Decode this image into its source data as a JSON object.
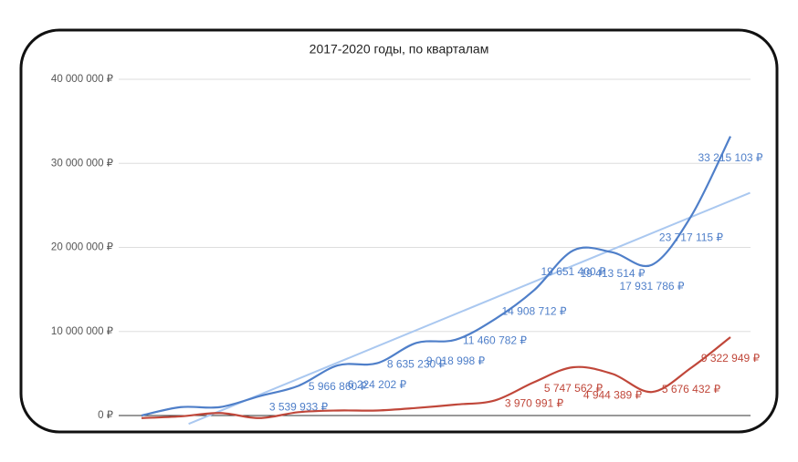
{
  "chart_data": {
    "type": "line",
    "title": "2017-2020 годы, по кварталам",
    "categories": [
      null,
      null,
      null,
      null,
      null,
      null,
      null,
      null,
      null,
      null,
      null,
      null,
      null,
      null,
      null,
      null
    ],
    "xlim": [
      0,
      15
    ],
    "ylim": [
      0,
      40000000
    ],
    "yticks": [
      {
        "value": 0,
        "label": "0 ₽"
      },
      {
        "value": 10000000,
        "label": "10 000 000 ₽"
      },
      {
        "value": 20000000,
        "label": "20 000 000 ₽"
      },
      {
        "value": 30000000,
        "label": "30 000 000 ₽"
      },
      {
        "value": 40000000,
        "label": "40 000 000 ₽"
      }
    ],
    "grid": true,
    "series": [
      {
        "color": "#4f7fc9",
        "values": [
          0,
          1000000,
          1000000,
          2300000,
          3539933,
          5966860,
          6224202,
          8635230,
          9018998,
          11460782,
          14908712,
          19651400,
          19413514,
          17931786,
          23717115,
          33215103
        ],
        "value_labels": [
          null,
          null,
          null,
          null,
          "3 539 933 ₽",
          "5 966 860 ₽",
          "6 224 202 ₽",
          "8 635 230 ₽",
          "9 018 998 ₽",
          "11 460 782 ₽",
          "14 908 712 ₽",
          "19 651 400 ₽",
          "19 413 514 ₽",
          "17 931 786 ₽",
          "23 717 115 ₽",
          "33 215 103 ₽"
        ]
      },
      {
        "color": "#c0473a",
        "values": [
          -300000,
          -100000,
          300000,
          -300000,
          400000,
          600000,
          600000,
          900000,
          1300000,
          1800000,
          3970991,
          5747562,
          4944389,
          2800000,
          5676432,
          9322949
        ],
        "value_labels": [
          null,
          null,
          null,
          null,
          null,
          null,
          null,
          null,
          null,
          null,
          "3 970 991 ₽",
          "5 747 562 ₽",
          "4 944 389 ₽",
          null,
          "5 676 432 ₽",
          "9 322 949 ₽"
        ]
      }
    ],
    "trendline": {
      "color": "#aac8f0",
      "x": [
        1.2,
        15.5
      ],
      "values": [
        -1000000,
        26500000
      ]
    }
  }
}
